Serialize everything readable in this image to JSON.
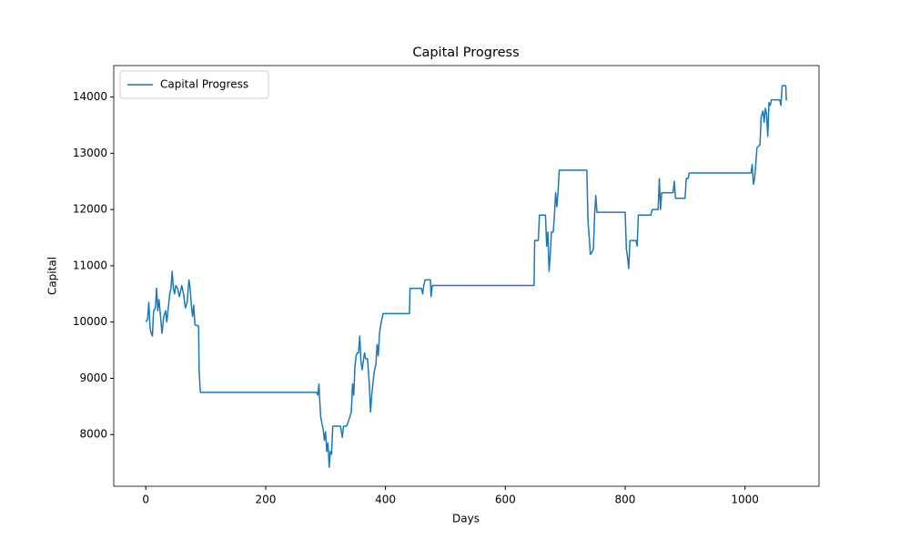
{
  "chart_data": {
    "type": "line",
    "title": "Capital Progress",
    "x_label": "Days",
    "y_label": "Capital",
    "x": [
      0,
      3,
      5,
      7,
      9,
      11,
      13,
      16,
      18,
      20,
      22,
      25,
      27,
      30,
      33,
      35,
      38,
      40,
      42,
      44,
      46,
      48,
      50,
      53,
      56,
      58,
      60,
      63,
      66,
      69,
      72,
      74,
      76,
      78,
      80,
      82,
      88,
      89,
      91,
      285,
      287,
      289,
      290,
      292,
      294,
      296,
      298,
      300,
      302,
      304,
      306,
      308,
      310,
      312,
      325,
      328,
      330,
      335,
      337,
      340,
      343,
      345,
      347,
      349,
      351,
      353,
      355,
      357,
      359,
      361,
      363,
      365,
      367,
      370,
      373,
      375,
      377,
      379,
      381,
      384,
      386,
      388,
      390,
      393,
      396,
      440,
      441,
      460,
      462,
      464,
      466,
      475,
      476,
      478,
      648,
      649,
      655,
      657,
      667,
      669,
      671,
      673,
      675,
      677,
      680,
      682,
      684,
      686,
      688,
      690,
      736,
      738,
      740,
      742,
      745,
      747,
      749,
      751,
      753,
      800,
      802,
      804,
      806,
      808,
      818,
      820,
      822,
      843,
      845,
      855,
      857,
      859,
      861,
      880,
      882,
      884,
      900,
      902,
      905,
      907,
      1010,
      1012,
      1014,
      1016,
      1018,
      1020,
      1025,
      1027,
      1030,
      1032,
      1034,
      1036,
      1038,
      1040,
      1042,
      1044,
      1058,
      1060,
      1062,
      1068,
      1069,
      1070
    ],
    "series": [
      {
        "name": "Capital Progress",
        "color": "#1f77b4",
        "values": [
          10000,
          10050,
          10350,
          9900,
          9800,
          9750,
          10200,
          10250,
          10600,
          10200,
          10400,
          10050,
          9800,
          10100,
          10200,
          10000,
          10300,
          10500,
          10600,
          10900,
          10600,
          10500,
          10650,
          10600,
          10450,
          10550,
          10650,
          10500,
          10250,
          10350,
          10750,
          10600,
          10300,
          10100,
          10300,
          9950,
          9930,
          9150,
          8750,
          8750,
          8700,
          8900,
          8650,
          8300,
          8200,
          8100,
          7900,
          8050,
          7700,
          7850,
          7420,
          7700,
          7650,
          8150,
          8150,
          7950,
          8150,
          8150,
          8200,
          8300,
          8400,
          8900,
          8700,
          9200,
          9400,
          9450,
          9450,
          9750,
          9300,
          9150,
          9300,
          9450,
          9350,
          9350,
          8900,
          8400,
          8700,
          8900,
          9100,
          9250,
          9600,
          9400,
          9800,
          10000,
          10150,
          10150,
          10600,
          10600,
          10500,
          10650,
          10750,
          10750,
          10450,
          10650,
          10650,
          11450,
          11450,
          11900,
          11900,
          11350,
          11600,
          10900,
          11200,
          11600,
          11600,
          11900,
          12300,
          12050,
          12300,
          12700,
          12700,
          11800,
          11500,
          11200,
          11250,
          11300,
          11900,
          12250,
          11950,
          11950,
          11300,
          11150,
          10950,
          11450,
          11450,
          11350,
          11900,
          11900,
          12000,
          12000,
          12550,
          12000,
          12300,
          12300,
          12500,
          12200,
          12200,
          12550,
          12550,
          12650,
          12650,
          12800,
          12450,
          12550,
          12800,
          13100,
          13150,
          13650,
          13750,
          13550,
          13800,
          13700,
          13300,
          13900,
          13850,
          13950,
          13950,
          13850,
          14200,
          14200,
          13950,
          13950
        ]
      }
    ],
    "xlim": [
      -53.5,
      1123.5
    ],
    "ylim": [
      7081,
      14559
    ],
    "xticks": [
      0,
      200,
      400,
      600,
      800,
      1000
    ],
    "yticks": [
      8000,
      9000,
      10000,
      11000,
      12000,
      13000,
      14000
    ],
    "legend": "upper left",
    "grid": false
  }
}
